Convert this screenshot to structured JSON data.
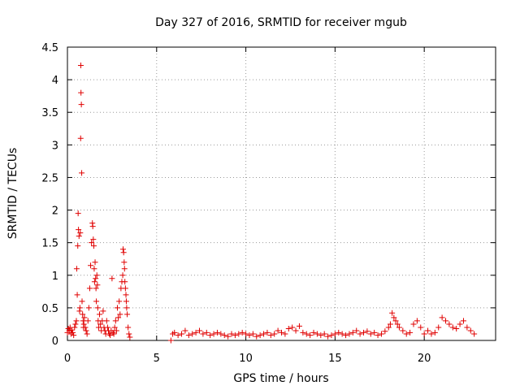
{
  "chart_data": {
    "type": "scatter",
    "title": "Day 327 of 2016, SRMTID for receiver mgub",
    "xlabel": "GPS time / hours",
    "ylabel": "SRMTID / TECUs",
    "xlim": [
      0,
      24
    ],
    "ylim": [
      0,
      4.5
    ],
    "x_ticks": [
      0,
      5,
      10,
      15,
      20
    ],
    "x_tick_labels": [
      "0",
      "5",
      "10",
      "15",
      "20"
    ],
    "y_ticks": [
      0,
      0.5,
      1,
      1.5,
      2,
      2.5,
      3,
      3.5,
      4,
      4.5
    ],
    "y_tick_labels": [
      "0",
      "0.5",
      "1",
      "1.5",
      "2",
      "2.5",
      "3",
      "3.5",
      "4",
      "4.5"
    ],
    "grid": true,
    "marker": "+",
    "color": "#e00000",
    "series": [
      {
        "name": "SRMTID",
        "x": [
          0.0,
          0.05,
          0.1,
          0.15,
          0.2,
          0.25,
          0.3,
          0.35,
          0.4,
          0.45,
          0.5,
          0.52,
          0.55,
          0.58,
          0.6,
          0.62,
          0.65,
          0.68,
          0.7,
          0.72,
          0.74,
          0.75,
          0.76,
          0.78,
          0.8,
          0.82,
          0.85,
          0.88,
          0.9,
          0.92,
          0.95,
          1.0,
          1.05,
          1.1,
          1.15,
          1.2,
          1.25,
          1.3,
          1.35,
          1.4,
          1.42,
          1.45,
          1.48,
          1.5,
          1.52,
          1.55,
          1.58,
          1.6,
          1.62,
          1.65,
          1.68,
          1.7,
          1.72,
          1.75,
          1.8,
          1.85,
          1.9,
          1.95,
          2.0,
          2.05,
          2.1,
          2.15,
          2.2,
          2.25,
          2.3,
          2.35,
          2.4,
          2.45,
          2.5,
          2.55,
          2.6,
          2.65,
          2.7,
          2.75,
          2.8,
          2.85,
          2.9,
          2.95,
          3.0,
          3.05,
          3.1,
          3.12,
          3.15,
          3.18,
          3.2,
          3.22,
          3.25,
          3.28,
          3.3,
          3.32,
          3.35,
          3.4,
          3.45,
          3.5,
          5.8,
          5.9,
          6.0,
          6.2,
          6.4,
          6.6,
          6.8,
          7.0,
          7.2,
          7.4,
          7.6,
          7.8,
          8.0,
          8.2,
          8.4,
          8.6,
          8.8,
          9.0,
          9.2,
          9.4,
          9.6,
          9.8,
          10.0,
          10.2,
          10.4,
          10.6,
          10.8,
          11.0,
          11.2,
          11.4,
          11.6,
          11.8,
          12.0,
          12.2,
          12.4,
          12.6,
          12.8,
          13.0,
          13.2,
          13.4,
          13.6,
          13.8,
          14.0,
          14.2,
          14.4,
          14.6,
          14.8,
          15.0,
          15.2,
          15.4,
          15.6,
          15.8,
          16.0,
          16.2,
          16.4,
          16.6,
          16.8,
          17.0,
          17.2,
          17.4,
          17.6,
          17.8,
          18.0,
          18.1,
          18.2,
          18.3,
          18.4,
          18.5,
          18.6,
          18.8,
          19.0,
          19.2,
          19.4,
          19.6,
          19.8,
          20.0,
          20.2,
          20.4,
          20.6,
          20.8,
          21.0,
          21.2,
          21.4,
          21.6,
          21.8,
          22.0,
          22.2,
          22.4,
          22.6,
          22.8
        ],
        "y": [
          0.12,
          0.18,
          0.15,
          0.2,
          0.1,
          0.16,
          0.12,
          0.08,
          0.2,
          0.25,
          0.3,
          1.1,
          0.7,
          1.45,
          1.95,
          1.7,
          1.6,
          0.45,
          0.5,
          1.65,
          3.1,
          4.22,
          3.8,
          3.62,
          2.57,
          0.6,
          0.4,
          0.3,
          0.2,
          0.25,
          0.35,
          0.2,
          0.15,
          0.1,
          0.3,
          0.5,
          0.8,
          1.15,
          1.5,
          1.8,
          1.75,
          1.55,
          1.45,
          1.1,
          0.9,
          1.2,
          0.95,
          0.8,
          0.6,
          1.0,
          0.85,
          0.5,
          0.3,
          0.2,
          0.4,
          0.25,
          0.15,
          0.3,
          0.45,
          0.2,
          0.15,
          0.1,
          0.3,
          0.2,
          0.15,
          0.1,
          0.08,
          0.15,
          0.95,
          0.12,
          0.1,
          0.2,
          0.3,
          0.15,
          0.5,
          0.35,
          0.6,
          0.4,
          0.8,
          0.9,
          1.0,
          1.4,
          1.35,
          1.2,
          1.1,
          0.9,
          0.8,
          0.7,
          0.6,
          0.5,
          0.4,
          0.2,
          0.1,
          0.05,
          0.0,
          0.1,
          0.12,
          0.08,
          0.1,
          0.15,
          0.08,
          0.1,
          0.12,
          0.15,
          0.1,
          0.12,
          0.08,
          0.1,
          0.12,
          0.1,
          0.08,
          0.06,
          0.1,
          0.08,
          0.1,
          0.12,
          0.1,
          0.08,
          0.1,
          0.06,
          0.08,
          0.1,
          0.12,
          0.08,
          0.1,
          0.15,
          0.12,
          0.1,
          0.18,
          0.2,
          0.15,
          0.22,
          0.12,
          0.1,
          0.08,
          0.12,
          0.1,
          0.08,
          0.1,
          0.06,
          0.08,
          0.1,
          0.12,
          0.1,
          0.08,
          0.1,
          0.12,
          0.15,
          0.1,
          0.12,
          0.14,
          0.1,
          0.12,
          0.08,
          0.1,
          0.14,
          0.2,
          0.25,
          0.42,
          0.35,
          0.3,
          0.25,
          0.2,
          0.15,
          0.1,
          0.12,
          0.25,
          0.3,
          0.2,
          0.1,
          0.15,
          0.1,
          0.12,
          0.2,
          0.35,
          0.3,
          0.25,
          0.2,
          0.18,
          0.25,
          0.3,
          0.2,
          0.15,
          0.1
        ]
      }
    ]
  }
}
